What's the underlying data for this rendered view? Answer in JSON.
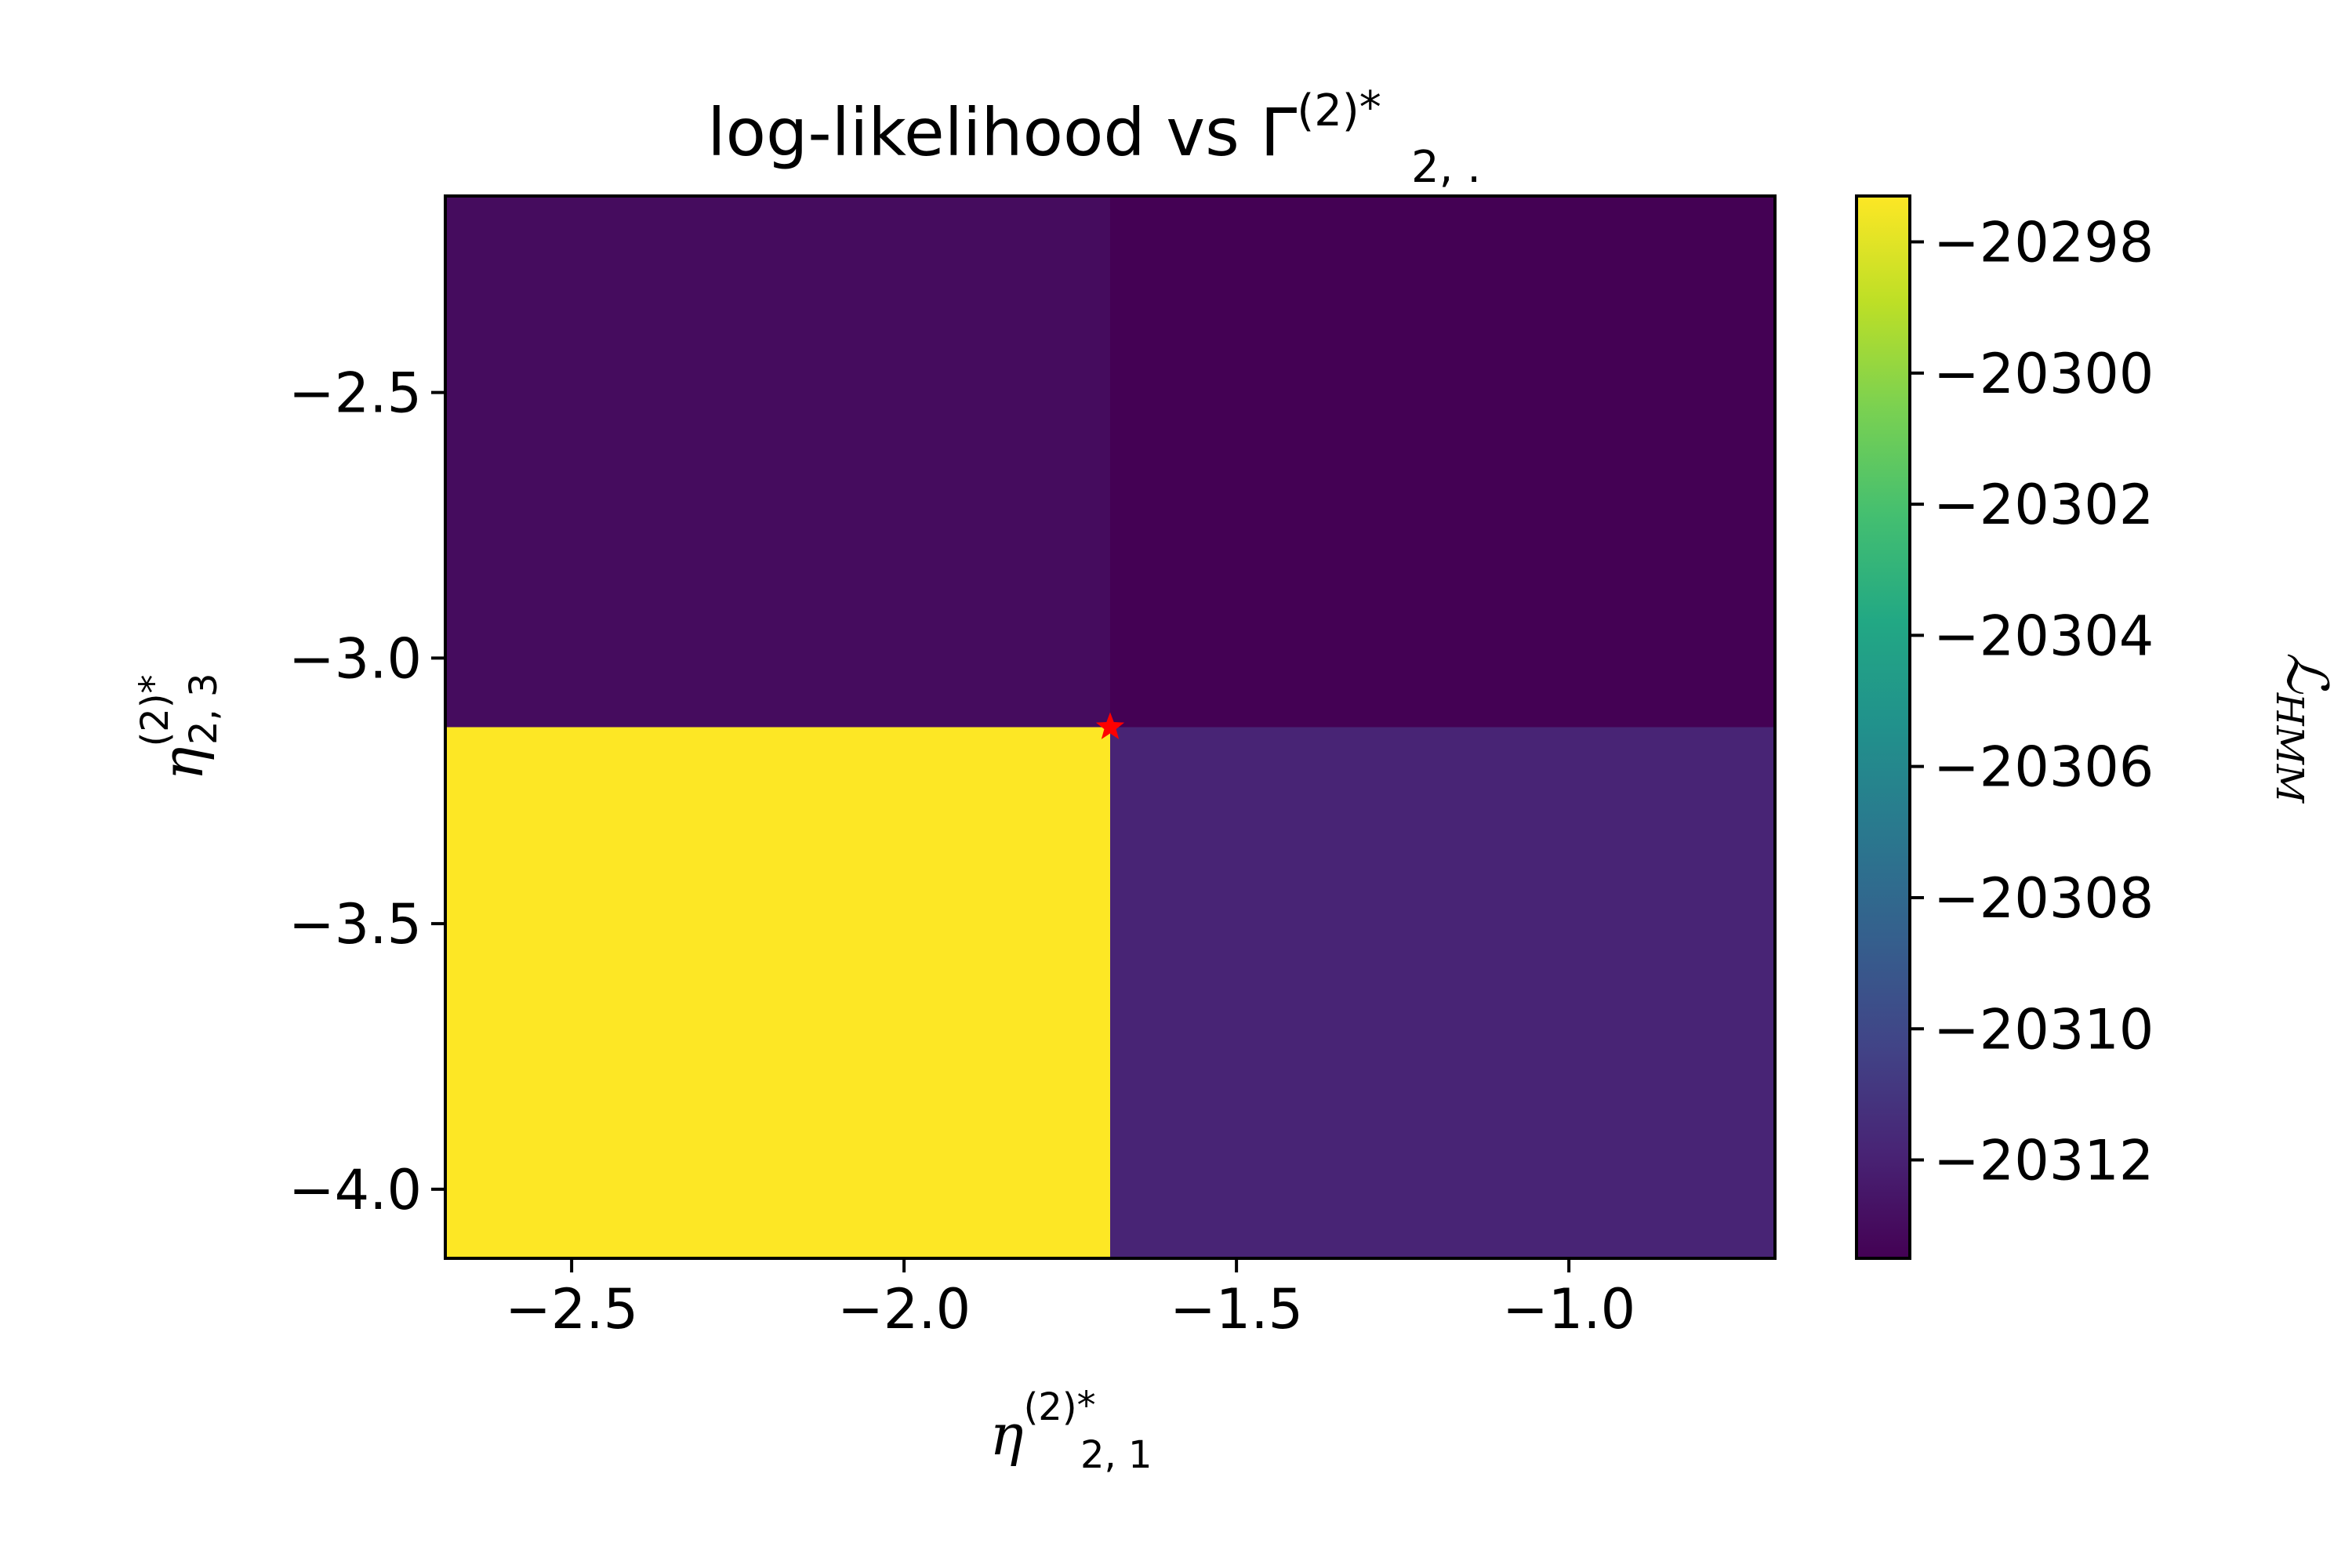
{
  "chart_data": {
    "type": "heatmap",
    "title": "log-likelihood vs Γ",
    "title_super": "(2)",
    "title_super_star": "*",
    "title_sub": "2, .",
    "xlabel": {
      "base": "η",
      "sup": "(2)",
      "star": "*",
      "sub": "2, 1"
    },
    "ylabel": {
      "base": "η",
      "sup": "(2)",
      "star": "*",
      "sub": "2, 3"
    },
    "xlim": [
      -2.69,
      -0.69
    ],
    "ylim": [
      -4.13,
      -2.13
    ],
    "x_edges": [
      -2.69,
      -1.69,
      -0.69
    ],
    "y_edges": [
      -4.13,
      -3.13,
      -2.13
    ],
    "cells": [
      {
        "x": [
          -2.69,
          -1.69
        ],
        "y": [
          -3.13,
          -2.13
        ],
        "value": -20313.0
      },
      {
        "x": [
          -1.69,
          -0.69
        ],
        "y": [
          -3.13,
          -2.13
        ],
        "value": -20313.5
      },
      {
        "x": [
          -2.69,
          -1.69
        ],
        "y": [
          -4.13,
          -3.13
        ],
        "value": -20297.3
      },
      {
        "x": [
          -1.69,
          -0.69
        ],
        "y": [
          -4.13,
          -3.13
        ],
        "value": -20311.9
      }
    ],
    "marker": {
      "x": -1.69,
      "y": -3.13,
      "symbol": "star",
      "color": "#ff0000"
    },
    "xticks": [
      -2.5,
      -2.0,
      -1.5,
      -1.0
    ],
    "xtick_labels": [
      "−2.5",
      "−2.0",
      "−1.5",
      "−1.0"
    ],
    "yticks": [
      -2.5,
      -3.0,
      -3.5,
      -4.0
    ],
    "ytick_labels": [
      "−2.5",
      "−3.0",
      "−3.5",
      "−4.0"
    ],
    "colorbar": {
      "label": "ℒ",
      "label_sub": "HMM",
      "colormap": "viridis",
      "vmin": -20313.5,
      "vmax": -20297.3,
      "ticks": [
        -20298,
        -20300,
        -20302,
        -20304,
        -20306,
        -20308,
        -20310,
        -20312
      ],
      "tick_labels": [
        "−20298",
        "−20300",
        "−20302",
        "−20304",
        "−20306",
        "−20308",
        "−20310",
        "−20312"
      ]
    },
    "grid": false
  }
}
